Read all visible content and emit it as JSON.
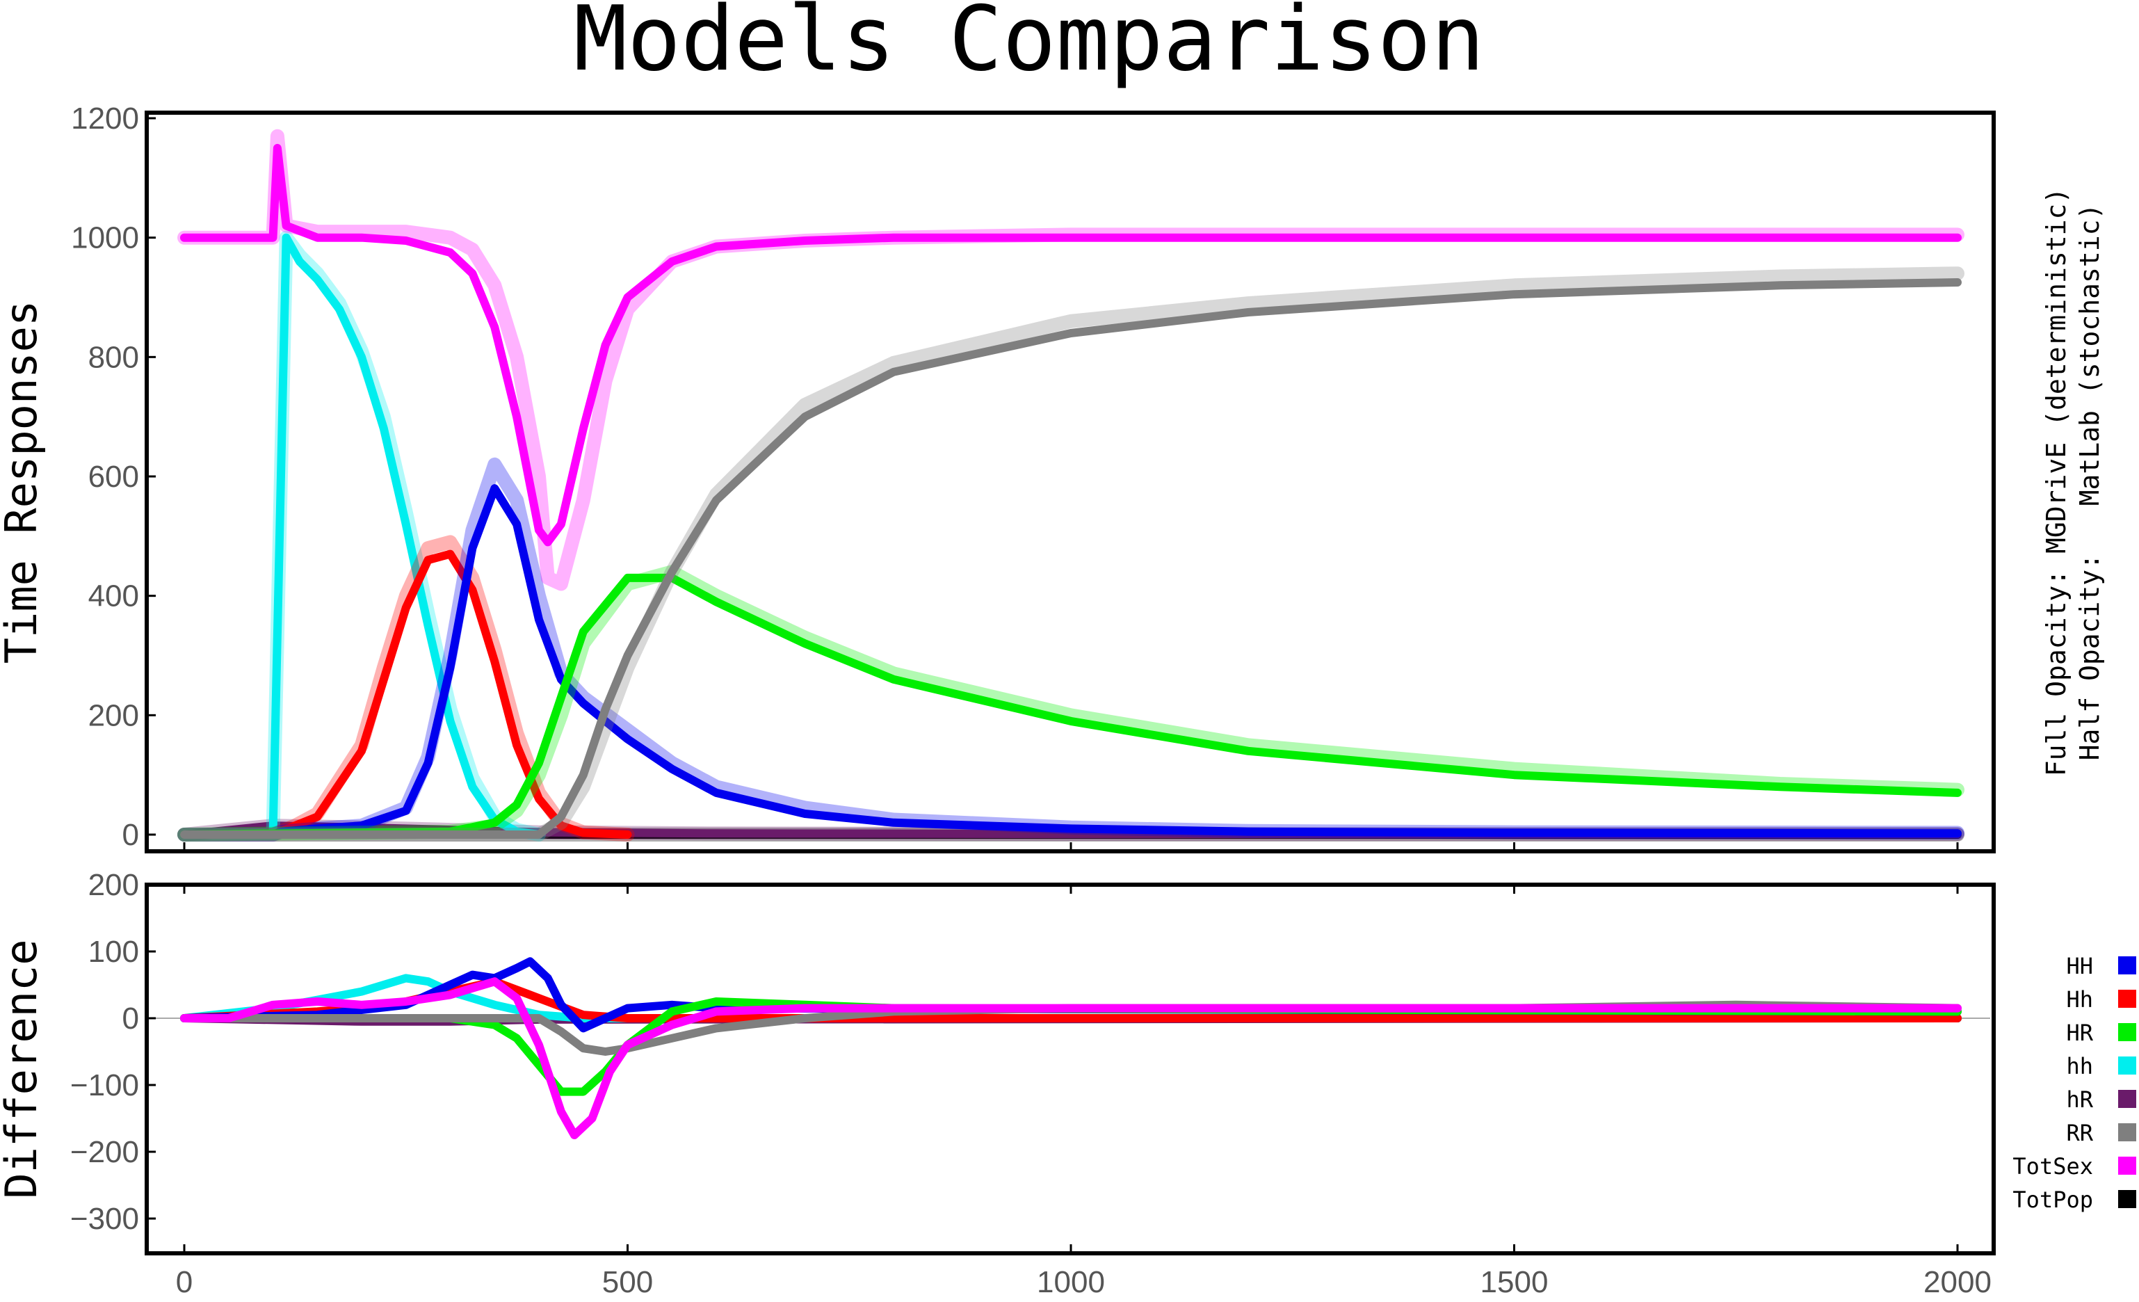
{
  "title": "Models Comparison",
  "side_note": {
    "line1": "Full Opacity: MGDrivE (deterministic)",
    "line2": "Half Opacity:   MatLab (stochastic)"
  },
  "colors": {
    "HH": "#0000ee",
    "Hh": "#ff0000",
    "HR": "#00ee00",
    "hh": "#00eeee",
    "hR": "#6a1b6a",
    "RR": "#7f7f7f",
    "TotSex": "#ff00ff",
    "TotPop": "#000000"
  },
  "legend": [
    {
      "label": "HH",
      "color": "#0000ee"
    },
    {
      "label": "Hh",
      "color": "#ff0000"
    },
    {
      "label": "HR",
      "color": "#00ee00"
    },
    {
      "label": "hh",
      "color": "#00eeee"
    },
    {
      "label": "hR",
      "color": "#6a1b6a"
    },
    {
      "label": "RR",
      "color": "#7f7f7f"
    },
    {
      "label": "TotSex",
      "color": "#ff00ff"
    },
    {
      "label": "TotPop",
      "color": "#000000"
    }
  ],
  "chart_data": [
    {
      "type": "line",
      "ylabel": "Time Responses",
      "xlabel": "",
      "xlim": [
        0,
        2000
      ],
      "ylim": [
        0,
        1200
      ],
      "yticks": [
        0,
        200,
        400,
        600,
        800,
        1000,
        1200
      ],
      "series": [
        {
          "name": "hh",
          "x": [
            0,
            100,
            115,
            130,
            150,
            175,
            200,
            225,
            250,
            275,
            300,
            325,
            350,
            375,
            400
          ],
          "values": [
            0,
            0,
            1000,
            960,
            930,
            880,
            800,
            680,
            520,
            350,
            190,
            80,
            25,
            5,
            0
          ],
          "stochastic": [
            0,
            0,
            1000,
            970,
            940,
            890,
            810,
            700,
            540,
            370,
            210,
            95,
            30,
            8,
            0
          ]
        },
        {
          "name": "Hh",
          "x": [
            0,
            100,
            125,
            150,
            200,
            225,
            250,
            275,
            300,
            325,
            350,
            375,
            400,
            425,
            450,
            500
          ],
          "values": [
            0,
            0,
            15,
            30,
            140,
            260,
            380,
            460,
            470,
            410,
            290,
            150,
            60,
            15,
            3,
            0
          ],
          "stochastic": [
            0,
            0,
            15,
            35,
            150,
            280,
            400,
            480,
            490,
            430,
            310,
            170,
            70,
            18,
            4,
            0
          ]
        },
        {
          "name": "HH",
          "x": [
            0,
            100,
            110,
            150,
            200,
            250,
            275,
            300,
            325,
            350,
            375,
            400,
            425,
            450,
            500,
            550,
            600,
            700,
            800,
            1000,
            1200,
            1500,
            2000
          ],
          "values": [
            0,
            0,
            5,
            10,
            15,
            40,
            120,
            280,
            480,
            580,
            520,
            360,
            260,
            220,
            160,
            110,
            70,
            35,
            20,
            10,
            5,
            3,
            2
          ],
          "stochastic": [
            0,
            0,
            5,
            10,
            15,
            45,
            130,
            300,
            510,
            620,
            560,
            400,
            270,
            230,
            175,
            120,
            80,
            45,
            25,
            12,
            6,
            4,
            3
          ]
        },
        {
          "name": "HR",
          "x": [
            0,
            300,
            350,
            375,
            400,
            425,
            450,
            500,
            550,
            600,
            700,
            800,
            1000,
            1200,
            1500,
            1800,
            2000
          ],
          "values": [
            0,
            5,
            20,
            50,
            120,
            230,
            340,
            430,
            430,
            390,
            320,
            260,
            190,
            140,
            100,
            80,
            70
          ],
          "stochastic": [
            0,
            5,
            15,
            40,
            100,
            200,
            320,
            420,
            440,
            400,
            330,
            270,
            200,
            150,
            110,
            85,
            75
          ]
        },
        {
          "name": "RR",
          "x": [
            0,
            400,
            425,
            450,
            475,
            500,
            550,
            600,
            700,
            800,
            1000,
            1200,
            1500,
            1800,
            2000
          ],
          "values": [
            0,
            0,
            30,
            100,
            210,
            300,
            440,
            560,
            700,
            775,
            840,
            875,
            905,
            920,
            925
          ],
          "stochastic": [
            0,
            0,
            20,
            80,
            180,
            280,
            440,
            570,
            720,
            790,
            860,
            890,
            920,
            935,
            940
          ]
        },
        {
          "name": "hR",
          "x": [
            0,
            100,
            200,
            300,
            400,
            600,
            1000,
            1500,
            2000
          ],
          "values": [
            0,
            15,
            12,
            8,
            4,
            2,
            1,
            1,
            1
          ],
          "stochastic": [
            0,
            15,
            12,
            8,
            4,
            2,
            1,
            1,
            1
          ]
        },
        {
          "name": "TotSex",
          "x": [
            0,
            100,
            105,
            115,
            150,
            200,
            250,
            300,
            325,
            350,
            375,
            400,
            410,
            425,
            450,
            475,
            500,
            550,
            600,
            700,
            800,
            1000,
            1500,
            2000
          ],
          "values": [
            1000,
            1000,
            1150,
            1020,
            1000,
            1000,
            995,
            975,
            940,
            850,
            700,
            510,
            490,
            520,
            680,
            820,
            900,
            960,
            985,
            995,
            1000,
            1000,
            1000,
            1000
          ],
          "stochastic": [
            1000,
            1000,
            1170,
            1020,
            1010,
            1010,
            1010,
            1000,
            980,
            920,
            800,
            600,
            430,
            420,
            560,
            760,
            880,
            960,
            985,
            995,
            1000,
            1005,
            1005,
            1005
          ]
        },
        {
          "name": "TotPop",
          "x": [
            0,
            2000
          ],
          "values": [
            0,
            0
          ],
          "stochastic": [
            0,
            0
          ]
        }
      ]
    },
    {
      "type": "line",
      "ylabel": "Difference",
      "xlabel": "",
      "xlim": [
        0,
        2000
      ],
      "ylim": [
        -350,
        200
      ],
      "yticks": [
        -300,
        -200,
        -100,
        0,
        100,
        200
      ],
      "xticks": [
        0,
        500,
        1000,
        1500,
        2000
      ],
      "series": [
        {
          "name": "hh",
          "x": [
            0,
            100,
            200,
            250,
            275,
            300,
            350,
            400,
            450,
            500,
            2000
          ],
          "values": [
            0,
            15,
            40,
            60,
            55,
            40,
            20,
            5,
            0,
            0,
            0
          ]
        },
        {
          "name": "Hh",
          "x": [
            0,
            150,
            200,
            250,
            300,
            350,
            400,
            450,
            500,
            2000
          ],
          "values": [
            0,
            10,
            15,
            25,
            40,
            55,
            30,
            5,
            0,
            0
          ]
        },
        {
          "name": "HH",
          "x": [
            0,
            150,
            250,
            300,
            325,
            350,
            375,
            390,
            410,
            425,
            450,
            475,
            500,
            550,
            600,
            2000
          ],
          "values": [
            0,
            5,
            20,
            50,
            65,
            60,
            75,
            85,
            60,
            20,
            -15,
            0,
            15,
            20,
            15,
            10
          ]
        },
        {
          "name": "HR",
          "x": [
            0,
            300,
            350,
            375,
            400,
            425,
            450,
            475,
            500,
            550,
            600,
            700,
            800,
            2000
          ],
          "values": [
            0,
            0,
            -10,
            -30,
            -70,
            -110,
            -110,
            -80,
            -40,
            10,
            25,
            20,
            15,
            10
          ]
        },
        {
          "name": "RR",
          "x": [
            0,
            400,
            425,
            450,
            475,
            500,
            550,
            600,
            700,
            800,
            1000,
            1500,
            1750,
            2000
          ],
          "values": [
            0,
            0,
            -20,
            -45,
            -50,
            -45,
            -30,
            -15,
            0,
            10,
            15,
            15,
            20,
            15
          ]
        },
        {
          "name": "hR",
          "x": [
            0,
            200,
            300,
            400,
            2000
          ],
          "values": [
            0,
            -5,
            -5,
            -2,
            0
          ]
        },
        {
          "name": "TotSex",
          "x": [
            0,
            50,
            100,
            150,
            200,
            250,
            300,
            325,
            350,
            375,
            400,
            425,
            440,
            460,
            480,
            500,
            550,
            600,
            700,
            800,
            1000,
            1500,
            2000
          ],
          "values": [
            0,
            0,
            20,
            25,
            20,
            25,
            35,
            45,
            55,
            30,
            -40,
            -140,
            -175,
            -150,
            -80,
            -40,
            -10,
            10,
            15,
            15,
            15,
            15,
            15
          ]
        },
        {
          "name": "TotPop",
          "x": [
            0,
            2000
          ],
          "values": [
            0,
            0
          ]
        }
      ]
    }
  ]
}
